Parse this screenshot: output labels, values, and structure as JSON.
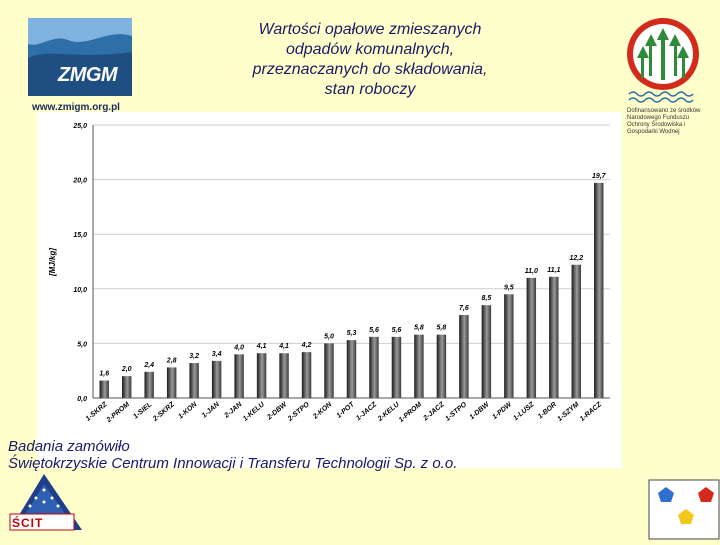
{
  "title_lines": [
    "Wartości opałowe zmieszanych",
    "odpadów komunalnych,",
    "przeznaczanych do składowania,",
    "stan roboczy"
  ],
  "logos": {
    "zmgm_text": "ZMGM",
    "zmgm_url": "www.zmigm.org.pl",
    "fund_caption": "Dofinansowano ze środków Narodowego Funduszu Ochrony Środowiska i Gospodarki Wodnej",
    "scit_text": "ŚCIT"
  },
  "credit_lines": [
    "Badania zamówiło",
    "Świętokrzyskie Centrum Innowacji i Transferu Technologii Sp. z o.o."
  ],
  "colors": {
    "background": "#ffffcc",
    "text": "#1a1a66"
  },
  "chart_data": {
    "type": "bar",
    "ylabel": "[MJ/kg]",
    "ylim": [
      0,
      25
    ],
    "yticks": [
      "0,0",
      "5,0",
      "10,0",
      "15,0",
      "20,0",
      "25,0"
    ],
    "grid": true,
    "categories": [
      "1-SKRZ",
      "2-PROM",
      "1-SIEL",
      "2-SKRZ",
      "1-KON",
      "1-JAN",
      "2-JAN",
      "1-KELU",
      "2-DBW",
      "2-STPO",
      "2-KON",
      "1-POT",
      "1-JACZ",
      "2-KELU",
      "1-PROM",
      "2-JACZ",
      "1-STPO",
      "1-DBW",
      "1-PDW",
      "1-LUSZ",
      "1-BOR",
      "1-SZYM",
      "1-RACZ"
    ],
    "values": [
      1.6,
      2.0,
      2.4,
      2.8,
      3.2,
      3.4,
      4.0,
      4.1,
      4.1,
      4.2,
      5.0,
      5.3,
      5.6,
      5.6,
      5.8,
      5.8,
      7.6,
      8.5,
      9.5,
      11.0,
      11.1,
      12.2,
      19.7
    ],
    "value_labels": [
      "1,6",
      "2,0",
      "2,4",
      "2,8",
      "3,2",
      "3,4",
      "4,0",
      "4,1",
      "4,1",
      "4,2",
      "5,0",
      "5,3",
      "5,6",
      "5,6",
      "5,8",
      "5,8",
      "7,6",
      "8,5",
      "9,5",
      "11,0",
      "11,1",
      "12,2",
      "19,7"
    ]
  }
}
